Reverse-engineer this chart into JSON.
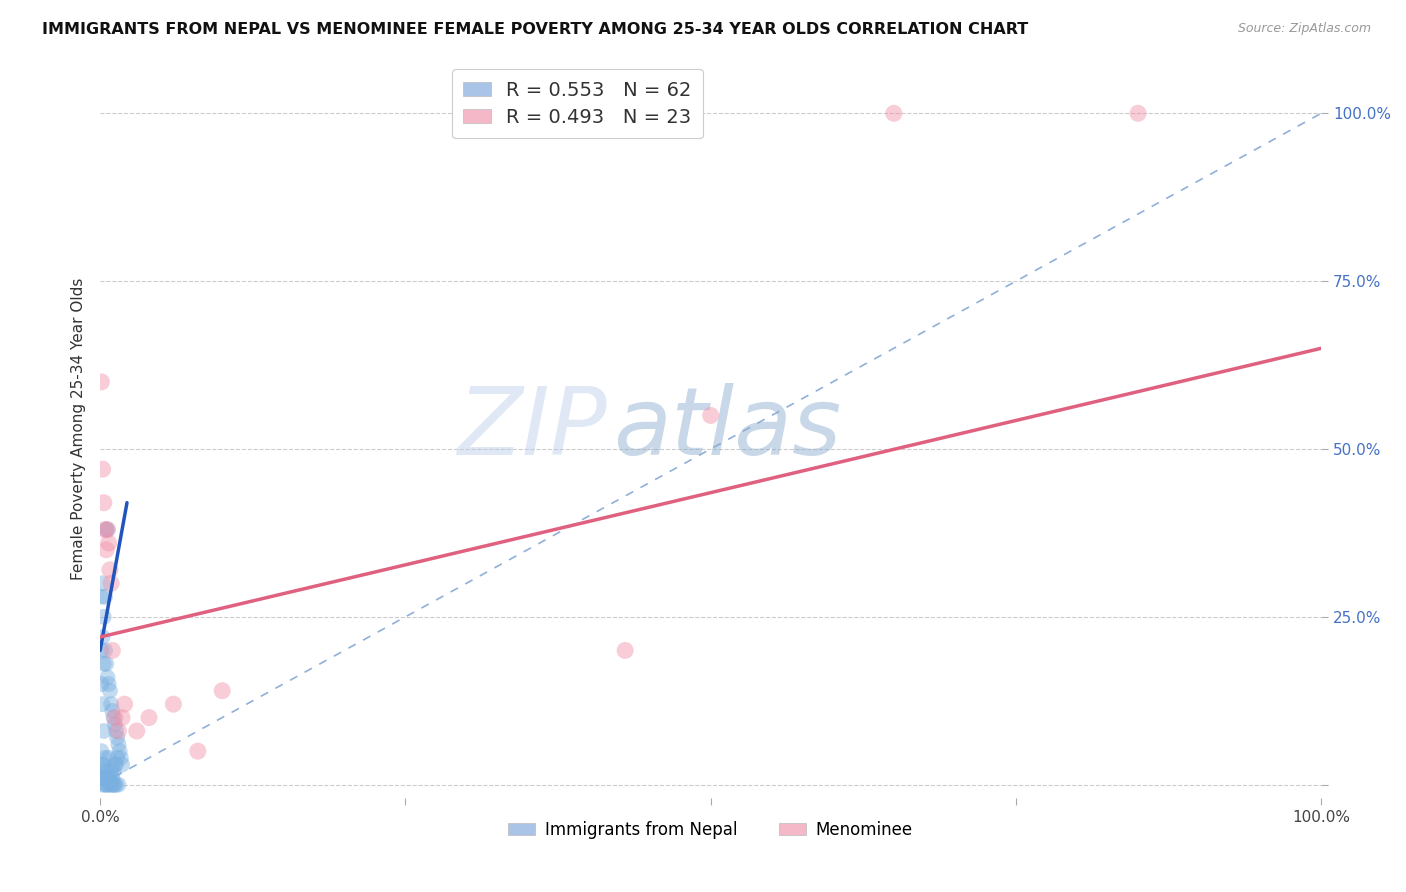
{
  "title": "IMMIGRANTS FROM NEPAL VS MENOMINEE FEMALE POVERTY AMONG 25-34 YEAR OLDS CORRELATION CHART",
  "source": "Source: ZipAtlas.com",
  "ylabel": "Female Poverty Among 25-34 Year Olds",
  "xlim": [
    0.0,
    1.0
  ],
  "ylim": [
    -0.02,
    1.08
  ],
  "r_nepal": 0.553,
  "n_nepal": 62,
  "r_menominee": 0.493,
  "n_menominee": 23,
  "nepal_color": "#7ab0e0",
  "menominee_color": "#f090a8",
  "nepal_legend_color": "#aac4e8",
  "menominee_legend_color": "#f4b8c8",
  "nepal_line_color": "#2255bb",
  "menominee_line_color": "#e06080",
  "diagonal_color": "#90b0d8",
  "background_color": "#ffffff",
  "watermark_zip": "ZIP",
  "watermark_atlas": "atlas",
  "nepal_scatter_x": [
    0.001,
    0.001,
    0.001,
    0.001,
    0.002,
    0.002,
    0.002,
    0.002,
    0.002,
    0.003,
    0.003,
    0.003,
    0.003,
    0.003,
    0.004,
    0.004,
    0.004,
    0.004,
    0.005,
    0.005,
    0.005,
    0.006,
    0.006,
    0.006,
    0.007,
    0.007,
    0.007,
    0.008,
    0.008,
    0.009,
    0.009,
    0.01,
    0.01,
    0.011,
    0.011,
    0.012,
    0.012,
    0.013,
    0.013,
    0.014,
    0.014,
    0.015,
    0.016,
    0.017,
    0.018,
    0.001,
    0.001,
    0.002,
    0.002,
    0.003,
    0.004,
    0.005,
    0.006,
    0.006,
    0.007,
    0.008,
    0.009,
    0.01,
    0.011,
    0.012,
    0.013,
    0.015
  ],
  "nepal_scatter_y": [
    0.2,
    0.28,
    0.15,
    0.05,
    0.22,
    0.3,
    0.12,
    0.03,
    0.01,
    0.18,
    0.25,
    0.08,
    0.03,
    0.01,
    0.28,
    0.2,
    0.04,
    0.01,
    0.38,
    0.18,
    0.01,
    0.38,
    0.16,
    0.01,
    0.15,
    0.04,
    0.01,
    0.14,
    0.02,
    0.12,
    0.02,
    0.11,
    0.01,
    0.1,
    0.02,
    0.09,
    0.03,
    0.08,
    0.03,
    0.07,
    0.04,
    0.06,
    0.05,
    0.04,
    0.03,
    0.02,
    0.01,
    0.02,
    0.0,
    0.01,
    0.0,
    0.0,
    0.01,
    0.0,
    0.01,
    0.0,
    0.0,
    0.0,
    0.0,
    0.0,
    0.0,
    0.0
  ],
  "menominee_scatter_x": [
    0.001,
    0.002,
    0.003,
    0.004,
    0.005,
    0.006,
    0.007,
    0.008,
    0.009,
    0.01,
    0.012,
    0.015,
    0.018,
    0.02,
    0.03,
    0.04,
    0.06,
    0.08,
    0.1,
    0.43,
    0.5,
    0.65,
    0.85
  ],
  "menominee_scatter_y": [
    0.6,
    0.47,
    0.42,
    0.38,
    0.35,
    0.38,
    0.36,
    0.32,
    0.3,
    0.2,
    0.1,
    0.08,
    0.1,
    0.12,
    0.08,
    0.1,
    0.12,
    0.05,
    0.14,
    0.2,
    0.55,
    1.0,
    1.0
  ],
  "nepal_line_x": [
    0.0,
    0.022
  ],
  "nepal_line_y": [
    0.2,
    0.42
  ],
  "menominee_line_x": [
    0.0,
    1.0
  ],
  "menominee_line_y": [
    0.22,
    0.65
  ],
  "diagonal_line_x": [
    0.0,
    1.0
  ],
  "diagonal_line_y": [
    0.0,
    1.0
  ]
}
